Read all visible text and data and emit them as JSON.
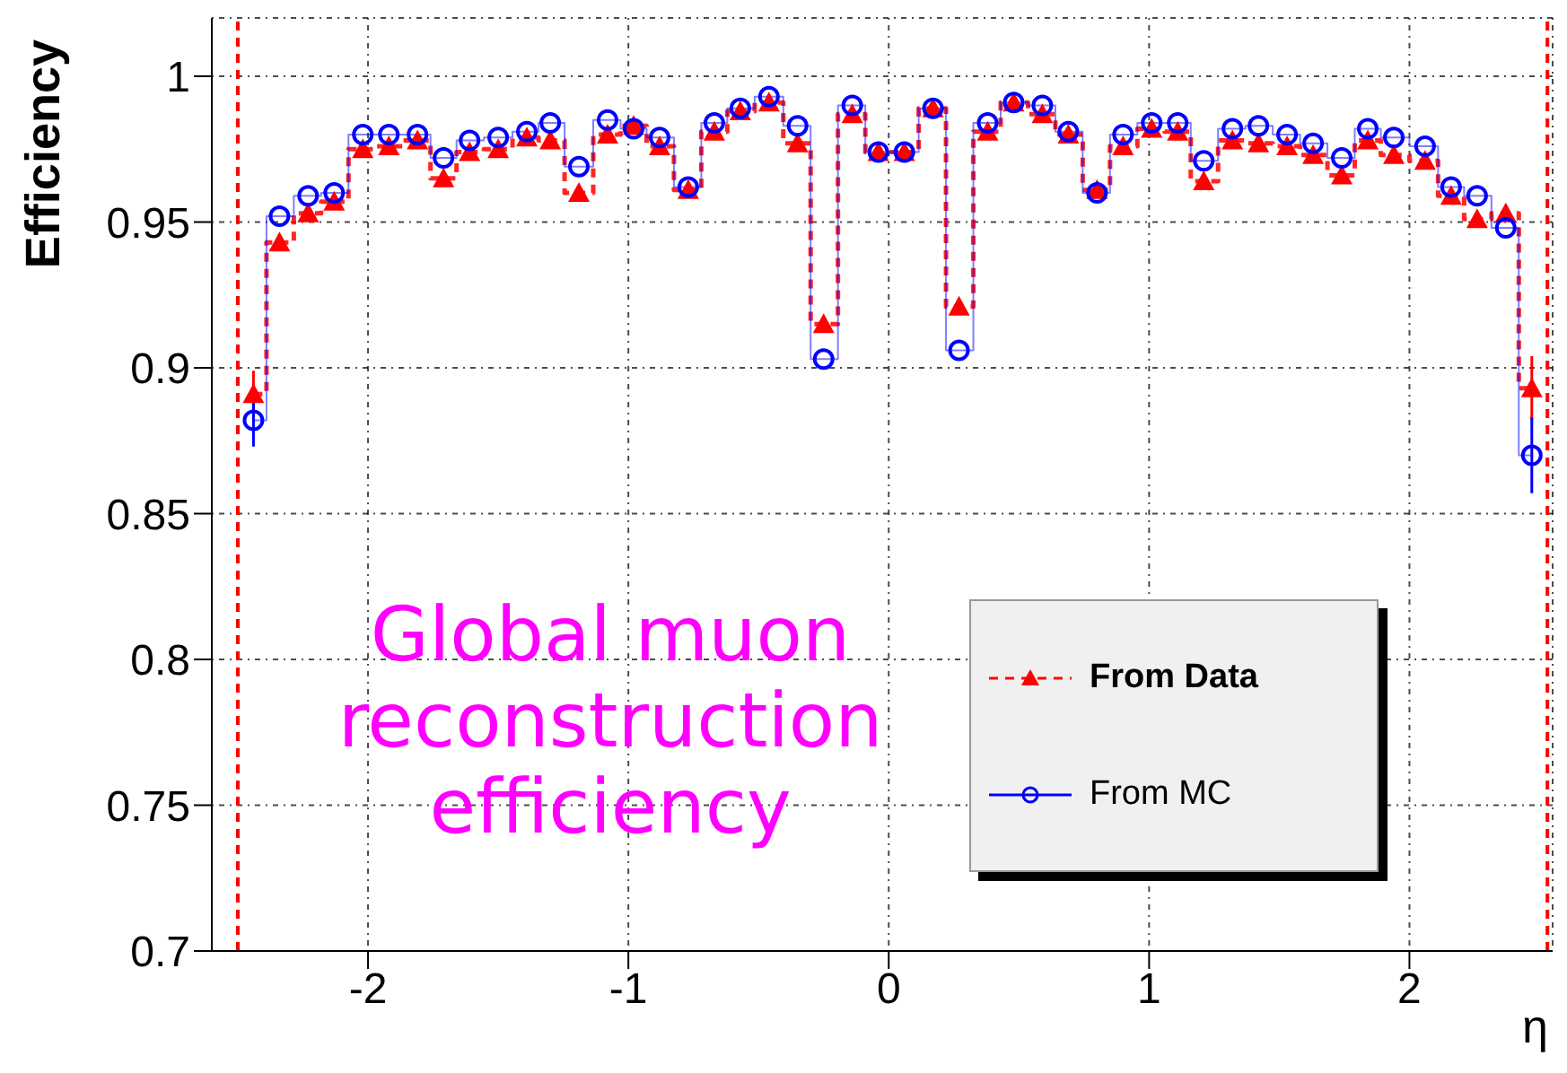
{
  "chart_data": {
    "type": "step",
    "xlabel": "η",
    "ylabel": "Efficiency",
    "annotations": [
      "Global muon reconstruction efficiency"
    ],
    "x": [
      -2.44,
      -2.34,
      -2.23,
      -2.13,
      -2.02,
      -1.92,
      -1.81,
      -1.71,
      -1.61,
      -1.5,
      -1.39,
      -1.3,
      -1.19,
      -1.08,
      -0.98,
      -0.88,
      -0.77,
      -0.67,
      -0.57,
      -0.46,
      -0.35,
      -0.25,
      -0.14,
      -0.04,
      0.06,
      0.17,
      0.27,
      0.38,
      0.48,
      0.59,
      0.69,
      0.8,
      0.9,
      1.01,
      1.11,
      1.21,
      1.32,
      1.42,
      1.53,
      1.63,
      1.74,
      1.84,
      1.94,
      2.06,
      2.16,
      2.26,
      2.37,
      2.47
    ],
    "series": [
      {
        "name": "From Data",
        "color": "#ff0000",
        "marker": "triangle",
        "line_style": "dashed",
        "values": [
          0.891,
          0.943,
          0.953,
          0.957,
          0.975,
          0.976,
          0.978,
          0.965,
          0.974,
          0.975,
          0.979,
          0.978,
          0.96,
          0.98,
          0.983,
          0.976,
          0.961,
          0.981,
          0.988,
          0.991,
          0.977,
          0.915,
          0.987,
          0.974,
          0.974,
          0.989,
          0.921,
          0.981,
          0.991,
          0.987,
          0.98,
          0.961,
          0.976,
          0.982,
          0.981,
          0.964,
          0.978,
          0.977,
          0.976,
          0.973,
          0.966,
          0.978,
          0.973,
          0.971,
          0.959,
          0.951,
          0.953,
          0.893
        ],
        "errors": [
          0.008,
          null,
          null,
          null,
          null,
          null,
          null,
          null,
          null,
          null,
          null,
          null,
          null,
          null,
          null,
          null,
          null,
          null,
          null,
          null,
          null,
          null,
          null,
          null,
          null,
          null,
          null,
          null,
          null,
          null,
          null,
          null,
          null,
          null,
          null,
          null,
          null,
          null,
          null,
          null,
          null,
          null,
          null,
          null,
          null,
          null,
          null,
          0.011
        ]
      },
      {
        "name": "From MC",
        "color": "#0000ff",
        "marker": "circle",
        "line_style": "solid",
        "values": [
          0.882,
          0.952,
          0.959,
          0.96,
          0.98,
          0.98,
          0.98,
          0.972,
          0.978,
          0.979,
          0.981,
          0.984,
          0.969,
          0.985,
          0.982,
          0.979,
          0.962,
          0.984,
          0.989,
          0.993,
          0.983,
          0.903,
          0.99,
          0.974,
          0.974,
          0.989,
          0.906,
          0.984,
          0.991,
          0.99,
          0.981,
          0.96,
          0.98,
          0.984,
          0.984,
          0.971,
          0.982,
          0.983,
          0.98,
          0.977,
          0.972,
          0.982,
          0.979,
          0.976,
          0.962,
          0.959,
          0.948,
          0.87
        ],
        "errors": [
          0.009,
          null,
          null,
          null,
          null,
          null,
          null,
          null,
          null,
          null,
          null,
          null,
          null,
          null,
          null,
          null,
          null,
          null,
          null,
          null,
          null,
          null,
          null,
          null,
          null,
          null,
          null,
          null,
          null,
          null,
          null,
          null,
          null,
          null,
          null,
          null,
          null,
          null,
          null,
          null,
          null,
          null,
          null,
          null,
          null,
          null,
          null,
          0.013
        ]
      }
    ],
    "ref_lines": [
      {
        "axis": "x",
        "value": -2.5,
        "label": null,
        "color": "#ff0000",
        "line_style": "dashed"
      },
      {
        "axis": "x",
        "value": 2.53,
        "label": null,
        "color": "#ff0000",
        "line_style": "dashed"
      }
    ],
    "xlim": [
      -2.6,
      2.55
    ],
    "xticks": [
      -2,
      -1,
      0,
      1,
      2
    ],
    "ylim": [
      0.7,
      1.02
    ],
    "yticks": [
      0.7,
      0.75,
      0.8,
      0.85,
      0.9,
      0.95,
      1
    ],
    "grid": true,
    "legend": "bottom right"
  }
}
